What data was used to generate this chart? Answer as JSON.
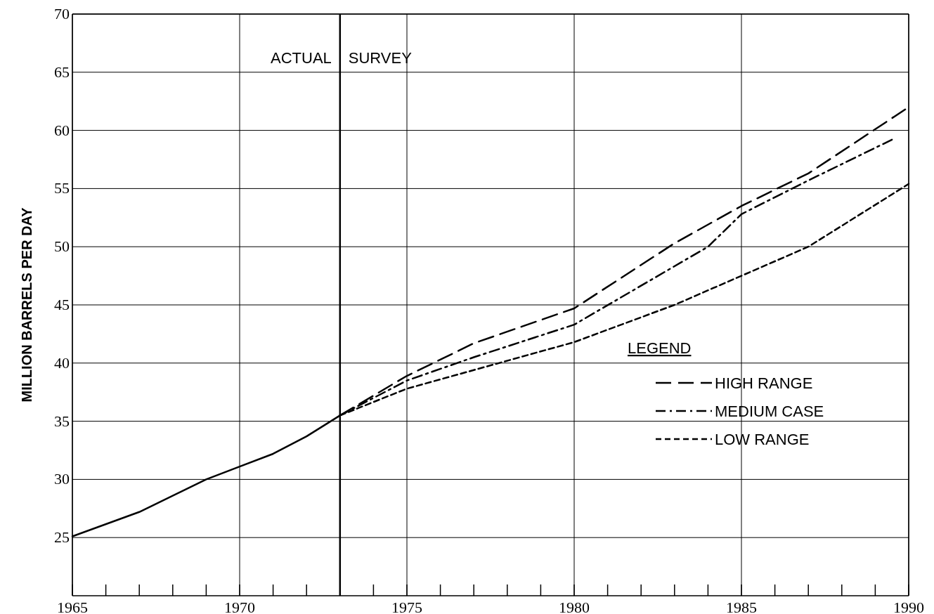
{
  "chart_data": {
    "type": "line",
    "ylabel": "MILLION BARRELS PER DAY",
    "legend_title": "LEGEND",
    "legend": "bottom right",
    "grid": true,
    "xlim": [
      1965,
      1990
    ],
    "xticks": [
      1965,
      {
        "value": 1966,
        "label": null
      },
      {
        "value": 1967,
        "label": null
      },
      {
        "value": 1968,
        "label": null
      },
      {
        "value": 1969,
        "label": null
      },
      1970,
      {
        "value": 1971,
        "label": null
      },
      {
        "value": 1972,
        "label": null
      },
      {
        "value": 1973,
        "label": null
      },
      {
        "value": 1974,
        "label": null
      },
      1975,
      {
        "value": 1976,
        "label": null
      },
      {
        "value": 1977,
        "label": null
      },
      {
        "value": 1978,
        "label": null
      },
      {
        "value": 1979,
        "label": null
      },
      1980,
      {
        "value": 1981,
        "label": null
      },
      {
        "value": 1982,
        "label": null
      },
      {
        "value": 1983,
        "label": null
      },
      {
        "value": 1984,
        "label": null
      },
      1985,
      {
        "value": 1986,
        "label": null
      },
      {
        "value": 1987,
        "label": null
      },
      {
        "value": 1988,
        "label": null
      },
      {
        "value": 1989,
        "label": null
      },
      1990
    ],
    "ylim": [
      20,
      70
    ],
    "yticks": [
      25,
      30,
      35,
      40,
      45,
      50,
      55,
      60,
      65,
      70
    ],
    "ref_lines": [
      {
        "axis": "x",
        "value": 1973,
        "color": "#000000"
      }
    ],
    "annotations": [
      "ACTUAL",
      "SURVEY"
    ],
    "series": [
      {
        "color": "#000000",
        "line_style": "solid",
        "x": [
          1965,
          1967,
          1969,
          1970,
          1971,
          1972,
          1973
        ],
        "values": [
          25.1,
          27.2,
          30,
          31.1,
          32.2,
          33.7,
          35.5
        ]
      },
      {
        "name": "HIGH RANGE",
        "color": "#000000",
        "line_style": "dashed",
        "x": [
          1973,
          1975,
          1977,
          1980,
          1983,
          1985,
          1987,
          1990
        ],
        "values": [
          35.5,
          38.9,
          41.7,
          44.7,
          50.3,
          53.5,
          56.3,
          62
        ]
      },
      {
        "name": "MEDIUM CASE",
        "color": "#000000",
        "line_style": "dashdot",
        "x": [
          1973,
          1975,
          1977,
          1980,
          1984,
          1985,
          1987,
          1989.5
        ],
        "values": [
          35.5,
          38.5,
          40.5,
          43.3,
          50,
          52.8,
          55.7,
          59.2
        ]
      },
      {
        "name": "LOW RANGE",
        "color": "#000000",
        "line_style": "dotted",
        "x": [
          1973,
          1975,
          1977,
          1980,
          1983,
          1985,
          1987,
          1990
        ],
        "values": [
          35.5,
          37.8,
          39.4,
          41.8,
          45,
          47.5,
          50,
          55.4
        ]
      }
    ]
  }
}
